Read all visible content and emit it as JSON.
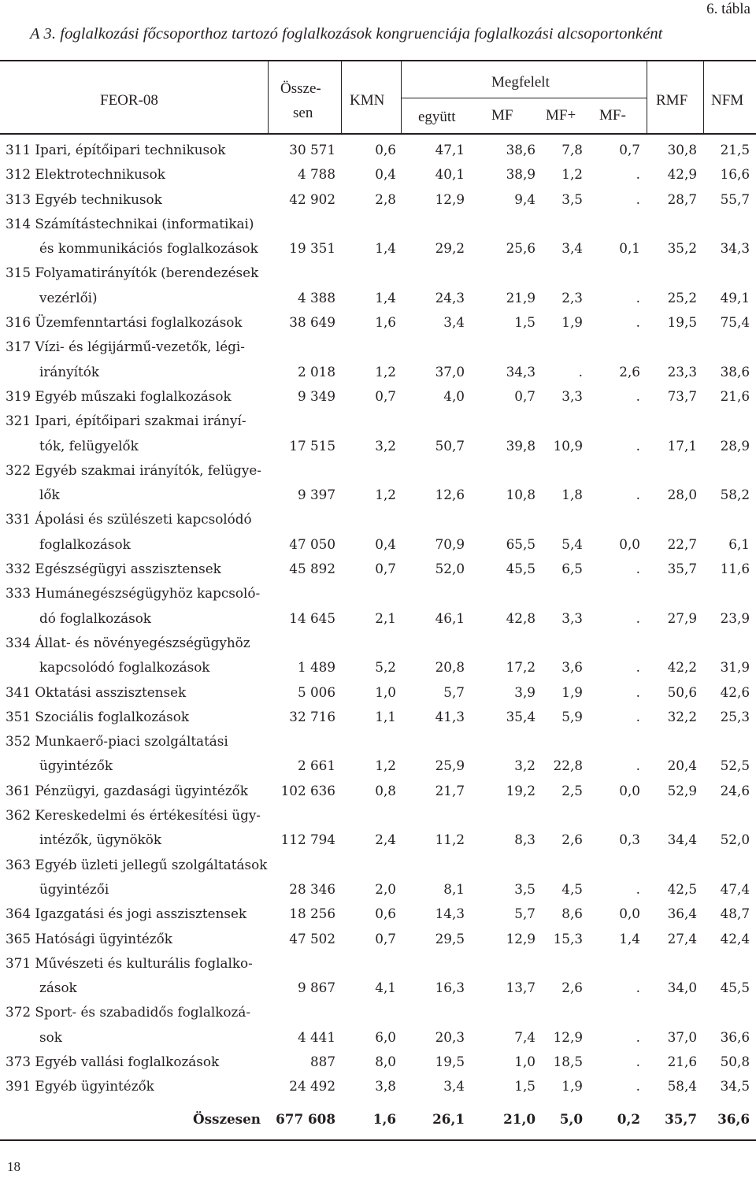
{
  "table_label": "6. tábla",
  "title": "A 3. foglalkozási főcsoporthoz tartozó foglalkozások kongruenciája foglalkozási alcsoportonként",
  "header": {
    "feor": "FEOR-08",
    "osszesen_l1": "Össze-",
    "osszesen_l2": "sen",
    "kmn": "KMN",
    "megfelelt": "Megfelelt",
    "egyutt": "együtt",
    "mf": "MF",
    "mfplus": "MF+",
    "mfminus": "MF-",
    "rmf": "RMF",
    "nfm": "NFM"
  },
  "rows": [
    {
      "l1": "311 Ipari, építőipari technikusok",
      "l2": "",
      "v": [
        "30 571",
        "0,6",
        "47,1",
        "38,6",
        "7,8",
        "0,7",
        "30,8",
        "21,5"
      ]
    },
    {
      "l1": "312 Elektrotechnikusok",
      "l2": "",
      "v": [
        "4 788",
        "0,4",
        "40,1",
        "38,9",
        "1,2",
        ".",
        "42,9",
        "16,6"
      ]
    },
    {
      "l1": "313 Egyéb technikusok",
      "l2": "",
      "v": [
        "42 902",
        "2,8",
        "12,9",
        "9,4",
        "3,5",
        ".",
        "28,7",
        "55,7"
      ]
    },
    {
      "l1": "314 Számítástechnikai (informatikai)",
      "l2": "és kommunikációs foglalkozások",
      "v": [
        "19 351",
        "1,4",
        "29,2",
        "25,6",
        "3,4",
        "0,1",
        "35,2",
        "34,3"
      ]
    },
    {
      "l1": "315 Folyamatirányítók (berendezések",
      "l2": "vezérlői)",
      "v": [
        "4 388",
        "1,4",
        "24,3",
        "21,9",
        "2,3",
        ".",
        "25,2",
        "49,1"
      ]
    },
    {
      "l1": "316 Üzemfenntartási foglalkozások",
      "l2": "",
      "v": [
        "38 649",
        "1,6",
        "3,4",
        "1,5",
        "1,9",
        ".",
        "19,5",
        "75,4"
      ]
    },
    {
      "l1": "317 Vízi- és légijármű-vezetők, légi-",
      "l2": "irányítók",
      "v": [
        "2 018",
        "1,2",
        "37,0",
        "34,3",
        ".",
        "2,6",
        "23,3",
        "38,6"
      ]
    },
    {
      "l1": "319 Egyéb műszaki foglalkozások",
      "l2": "",
      "v": [
        "9 349",
        "0,7",
        "4,0",
        "0,7",
        "3,3",
        ".",
        "73,7",
        "21,6"
      ]
    },
    {
      "l1": "321 Ipari, építőipari szakmai irányí-",
      "l2": "tók, felügyelők",
      "v": [
        "17 515",
        "3,2",
        "50,7",
        "39,8",
        "10,9",
        ".",
        "17,1",
        "28,9"
      ]
    },
    {
      "l1": "322 Egyéb szakmai irányítók, felügye-",
      "l2": "lők",
      "v": [
        "9 397",
        "1,2",
        "12,6",
        "10,8",
        "1,8",
        ".",
        "28,0",
        "58,2"
      ]
    },
    {
      "l1": "331 Ápolási és szülészeti kapcsolódó",
      "l2": "foglalkozások",
      "v": [
        "47 050",
        "0,4",
        "70,9",
        "65,5",
        "5,4",
        "0,0",
        "22,7",
        "6,1"
      ]
    },
    {
      "l1": "332 Egészségügyi asszisztensek",
      "l2": "",
      "v": [
        "45 892",
        "0,7",
        "52,0",
        "45,5",
        "6,5",
        ".",
        "35,7",
        "11,6"
      ]
    },
    {
      "l1": "333 Humánegészségügyhöz kapcsoló-",
      "l2": "dó foglalkozások",
      "v": [
        "14 645",
        "2,1",
        "46,1",
        "42,8",
        "3,3",
        ".",
        "27,9",
        "23,9"
      ]
    },
    {
      "l1": "334 Állat- és növényegészségügyhöz",
      "l2": "kapcsolódó foglalkozások",
      "v": [
        "1 489",
        "5,2",
        "20,8",
        "17,2",
        "3,6",
        ".",
        "42,2",
        "31,9"
      ]
    },
    {
      "l1": "341 Oktatási asszisztensek",
      "l2": "",
      "v": [
        "5 006",
        "1,0",
        "5,7",
        "3,9",
        "1,9",
        ".",
        "50,6",
        "42,6"
      ]
    },
    {
      "l1": "351 Szociális foglalkozások",
      "l2": "",
      "v": [
        "32 716",
        "1,1",
        "41,3",
        "35,4",
        "5,9",
        ".",
        "32,2",
        "25,3"
      ]
    },
    {
      "l1": "352 Munkaerő-piaci szolgáltatási",
      "l2": "ügyintézők",
      "v": [
        "2 661",
        "1,2",
        "25,9",
        "3,2",
        "22,8",
        ".",
        "20,4",
        "52,5"
      ]
    },
    {
      "l1": "361 Pénzügyi, gazdasági ügyintézők",
      "l2": "",
      "v": [
        "102 636",
        "0,8",
        "21,7",
        "19,2",
        "2,5",
        "0,0",
        "52,9",
        "24,6"
      ]
    },
    {
      "l1": "362 Kereskedelmi és értékesítési ügy-",
      "l2": "intézők, ügynökök",
      "v": [
        "112 794",
        "2,4",
        "11,2",
        "8,3",
        "2,6",
        "0,3",
        "34,4",
        "52,0"
      ]
    },
    {
      "l1": "363 Egyéb üzleti jellegű szolgáltatások",
      "l2": "ügyintézői",
      "v": [
        "28 346",
        "2,0",
        "8,1",
        "3,5",
        "4,5",
        ".",
        "42,5",
        "47,4"
      ]
    },
    {
      "l1": "364 Igazgatási és jogi asszisztensek",
      "l2": "",
      "v": [
        "18 256",
        "0,6",
        "14,3",
        "5,7",
        "8,6",
        "0,0",
        "36,4",
        "48,7"
      ]
    },
    {
      "l1": "365 Hatósági ügyintézők",
      "l2": "",
      "v": [
        "47 502",
        "0,7",
        "29,5",
        "12,9",
        "15,3",
        "1,4",
        "27,4",
        "42,4"
      ]
    },
    {
      "l1": "371 Művészeti és kulturális foglalko-",
      "l2": "zások",
      "v": [
        "9 867",
        "4,1",
        "16,3",
        "13,7",
        "2,6",
        ".",
        "34,0",
        "45,5"
      ]
    },
    {
      "l1": "372 Sport- és szabadidős foglalkozá-",
      "l2": "sok",
      "v": [
        "4 441",
        "6,0",
        "20,3",
        "7,4",
        "12,9",
        ".",
        "37,0",
        "36,6"
      ]
    },
    {
      "l1": "373 Egyéb vallási foglalkozások",
      "l2": "",
      "v": [
        "887",
        "8,0",
        "19,5",
        "1,0",
        "18,5",
        ".",
        "21,6",
        "50,8"
      ]
    },
    {
      "l1": "391 Egyéb ügyintézők",
      "l2": "",
      "v": [
        "24 492",
        "3,8",
        "3,4",
        "1,5",
        "1,9",
        ".",
        "58,4",
        "34,5"
      ]
    }
  ],
  "total": {
    "label": "Összesen",
    "v": [
      "677 608",
      "1,6",
      "26,1",
      "21,0",
      "5,0",
      "0,2",
      "35,7",
      "36,6"
    ]
  },
  "page_number": "18"
}
